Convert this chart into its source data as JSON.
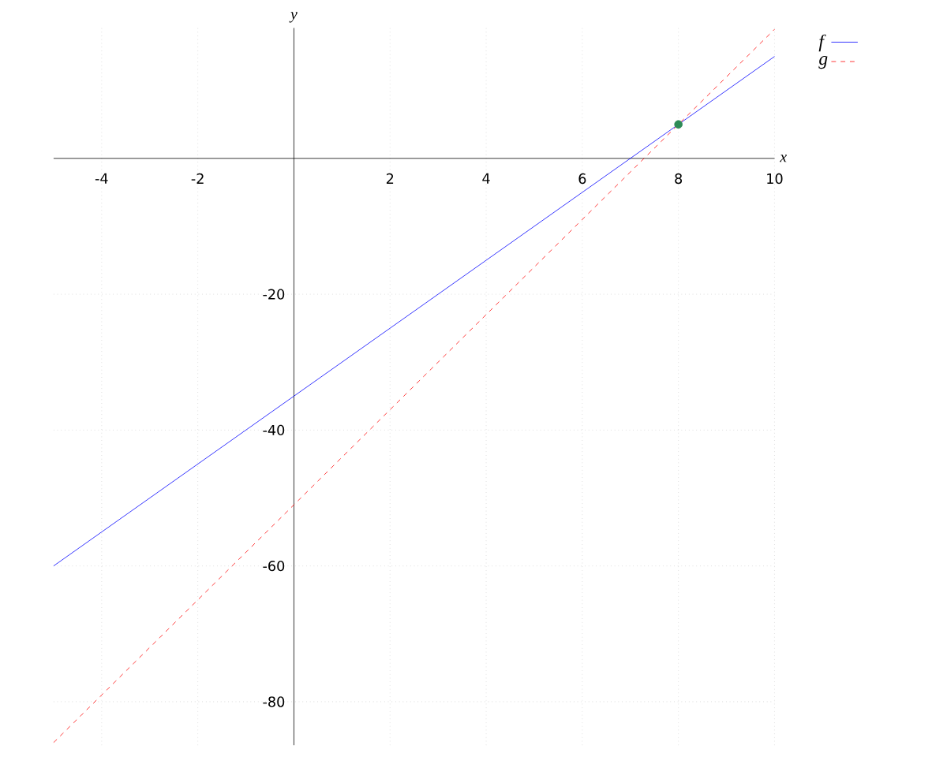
{
  "chart_data": {
    "type": "line",
    "xlabel": "x",
    "ylabel": "y",
    "xlim": [
      -5,
      10
    ],
    "ylim": [
      -86.4,
      19.2
    ],
    "xticks": [
      -4,
      -2,
      2,
      4,
      6,
      8,
      10
    ],
    "yticks": [
      -80,
      -60,
      -40,
      -20
    ],
    "grid": true,
    "legend": "top right",
    "series": [
      {
        "name": "f",
        "color": "#0000ff",
        "line_style": "solid",
        "x": [
          -5,
          10
        ],
        "values": [
          -60,
          15
        ]
      },
      {
        "name": "g",
        "color": "#ff0000",
        "line_style": "dashed",
        "x": [
          -5,
          10
        ],
        "values": [
          -86,
          19
        ]
      },
      {
        "type": "scatter",
        "color": "#2e8b57",
        "x": [
          8
        ],
        "values": [
          5
        ]
      }
    ]
  }
}
